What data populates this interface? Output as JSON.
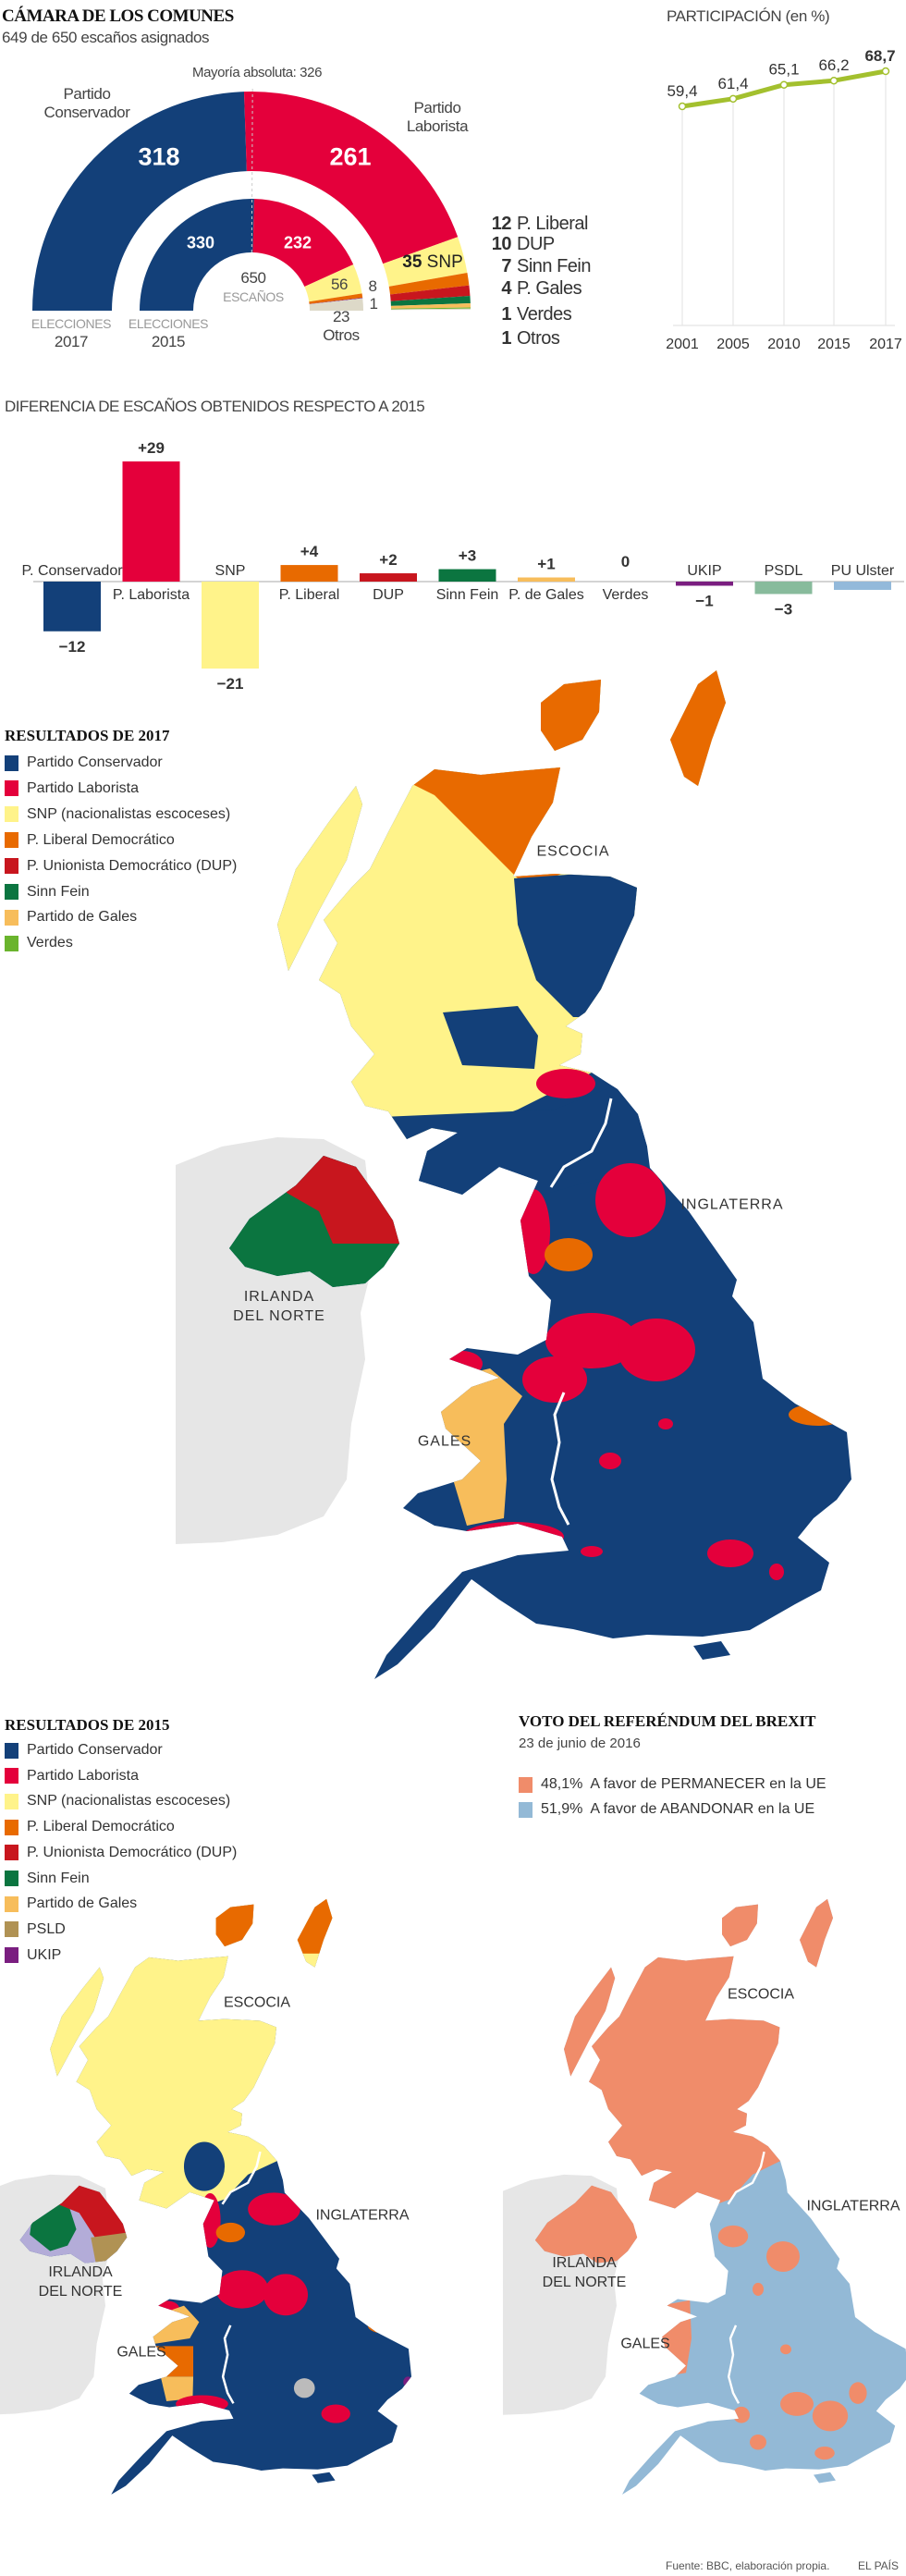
{
  "header": {
    "title": "CÁMARA DE LOS COMUNES",
    "subtitle": "649 de 650 escaños asignados"
  },
  "colors": {
    "conservador": "#134079",
    "laborista": "#e4003b",
    "snp": "#fff38a",
    "liberal": "#e86a00",
    "dup": "#c8161e",
    "sinn_fein": "#0b7540",
    "gales": "#f7bd5b",
    "verdes": "#6ab42d",
    "ukip": "#7a1e80",
    "psld": "#b09254",
    "uup": "#b3acd8",
    "otros": "#ddd9c8",
    "permanecer": "#f08c6a",
    "abandonar": "#93b9d6",
    "ireland": "#e6e6e6",
    "turnout_line": "#a3c02e"
  },
  "parliament": {
    "majority_label": "Mayoría absoluta:  326",
    "majority_seats": 326,
    "total_seats": 650,
    "center_total": "650",
    "center_label": "ESCAÑOS",
    "con_name_1": "Partido",
    "con_name_2": "Conservador",
    "lab_name_1": "Partido",
    "lab_name_2": "Laborista",
    "ring_2017": {
      "label_1": "ELECCIONES",
      "label_2": "2017",
      "segments": [
        {
          "party": "Partido Conservador",
          "seats": 318,
          "color": "#134079"
        },
        {
          "party": "Partido Laborista",
          "seats": 261,
          "color": "#e4003b"
        },
        {
          "party": "SNP",
          "seats": 35,
          "color": "#fff38a"
        },
        {
          "party": "P. Liberal",
          "seats": 12,
          "color": "#e86a00"
        },
        {
          "party": "DUP",
          "seats": 10,
          "color": "#c8161e"
        },
        {
          "party": "Sinn Fein",
          "seats": 7,
          "color": "#0b7540"
        },
        {
          "party": "P. Gales",
          "seats": 4,
          "color": "#f7bd5b"
        },
        {
          "party": "Verdes",
          "seats": 1,
          "color": "#6ab42d"
        },
        {
          "party": "Otros",
          "seats": 1,
          "color": "#ddd9c8"
        }
      ],
      "con_value": "318",
      "lab_value": "261",
      "snp_value": "35",
      "snp_name": "SNP"
    },
    "ring_2015": {
      "label_1": "ELECCIONES",
      "label_2": "2015",
      "segments": [
        {
          "party": "Partido Conservador",
          "seats": 330,
          "color": "#134079"
        },
        {
          "party": "Partido Laborista",
          "seats": 232,
          "color": "#e4003b"
        },
        {
          "party": "SNP",
          "seats": 56,
          "color": "#fff38a"
        },
        {
          "party": "P. Liberal",
          "seats": 8,
          "color": "#e86a00"
        },
        {
          "party": "UKIP",
          "seats": 1,
          "color": "#7a1e80"
        },
        {
          "party": "Otros",
          "seats": 23,
          "color": "#ddd9c8"
        }
      ],
      "con_value": "330",
      "lab_value": "232",
      "snp_value": "56",
      "ld_value": "8",
      "ukip_value": "1",
      "otros_value": "23",
      "otros_name": "Otros"
    },
    "small_parties_2017": [
      {
        "seats": "12",
        "name": "P. Liberal"
      },
      {
        "seats": "10",
        "name": "DUP"
      },
      {
        "seats": "7",
        "name": "Sinn Fein"
      },
      {
        "seats": "4",
        "name": "P. Gales"
      },
      {
        "seats": "1",
        "name": "Verdes"
      },
      {
        "seats": "1",
        "name": "Otros"
      }
    ]
  },
  "chart_data": [
    {
      "type": "line",
      "title": "PARTICIPACIÓN (en %)",
      "categories": [
        "2001",
        "2005",
        "2010",
        "2015",
        "2017"
      ],
      "values": [
        59.4,
        61.4,
        65.1,
        66.2,
        68.7
      ],
      "labels": [
        "59,4",
        "61,4",
        "65,1",
        "66,2",
        "68,7"
      ],
      "grid": "vertical",
      "color": "#a3c02e"
    },
    {
      "type": "bar",
      "title": "DIFERENCIA DE ESCAÑOS OBTENIDOS RESPECTO A 2015",
      "categories": [
        "P. Conservador",
        "P. Laborista",
        "SNP",
        "P. Liberal",
        "DUP",
        "Sinn Fein",
        "P. de Gales",
        "Verdes",
        "UKIP",
        "PSDL",
        "PU Ulster"
      ],
      "values": [
        -12,
        29,
        -21,
        4,
        2,
        3,
        1,
        0,
        -1,
        -3,
        -2
      ],
      "labels": [
        "−12",
        "+29",
        "−21",
        "+4",
        "+2",
        "+3",
        "+1",
        "0",
        "−1",
        "−3",
        ""
      ],
      "colors": [
        "#134079",
        "#e4003b",
        "#fff38a",
        "#e86a00",
        "#c8161e",
        "#0b7540",
        "#f7bd5b",
        "#6ab42d",
        "#7a1e80",
        "#88bb9c",
        "#93b9da"
      ]
    }
  ],
  "map_2017": {
    "title": "RESULTADOS DE 2017",
    "legend": [
      {
        "label": "Partido Conservador",
        "color": "#134079"
      },
      {
        "label": "Partido Laborista",
        "color": "#e4003b"
      },
      {
        "label": "SNP (nacionalistas escoceses)",
        "color": "#fff38a"
      },
      {
        "label": "P. Liberal Democrático",
        "color": "#e86a00"
      },
      {
        "label": "P. Unionista Democrático (DUP)",
        "color": "#c8161e"
      },
      {
        "label": "Sinn Fein",
        "color": "#0b7540"
      },
      {
        "label": "Partido de Gales",
        "color": "#f7bd5b"
      },
      {
        "label": "Verdes",
        "color": "#6ab42d"
      }
    ],
    "regions": {
      "scotland": "ESCOCIA",
      "england": "INGLATERRA",
      "ni_1": "IRLANDA",
      "ni_2": "DEL NORTE",
      "wales": "GALES"
    }
  },
  "map_2015": {
    "title": "RESULTADOS DE 2015",
    "legend": [
      {
        "label": "Partido Conservador",
        "color": "#134079"
      },
      {
        "label": "Partido Laborista",
        "color": "#e4003b"
      },
      {
        "label": "SNP (nacionalistas escoceses)",
        "color": "#fff38a"
      },
      {
        "label": "P. Liberal Democrático",
        "color": "#e86a00"
      },
      {
        "label": "P. Unionista Democrático (DUP)",
        "color": "#c8161e"
      },
      {
        "label": "Sinn Fein",
        "color": "#0b7540"
      },
      {
        "label": "Partido de Gales",
        "color": "#f7bd5b"
      },
      {
        "label": "PSLD",
        "color": "#b09254"
      },
      {
        "label": "UKIP",
        "color": "#7a1e80"
      }
    ],
    "regions": {
      "scotland": "ESCOCIA",
      "england": "INGLATERRA",
      "ni_1": "IRLANDA",
      "ni_2": "DEL NORTE",
      "wales": "GALES"
    }
  },
  "map_brexit": {
    "title": "VOTO DEL REFERÉNDUM DEL BREXIT",
    "date": "23 de junio de 2016",
    "legend": [
      {
        "pct": "48,1%",
        "label": "A favor de PERMANECER en la UE",
        "color": "#f08c6a"
      },
      {
        "pct": "51,9%",
        "label": "A favor de ABANDONAR en la UE",
        "color": "#93b9d6"
      }
    ],
    "regions": {
      "scotland": "ESCOCIA",
      "england": "INGLATERRA",
      "ni_1": "IRLANDA",
      "ni_2": "DEL NORTE",
      "wales": "GALES"
    }
  },
  "footer": {
    "source": "Fuente: BBC, elaboración propia.",
    "brand": "EL PAÍS"
  }
}
